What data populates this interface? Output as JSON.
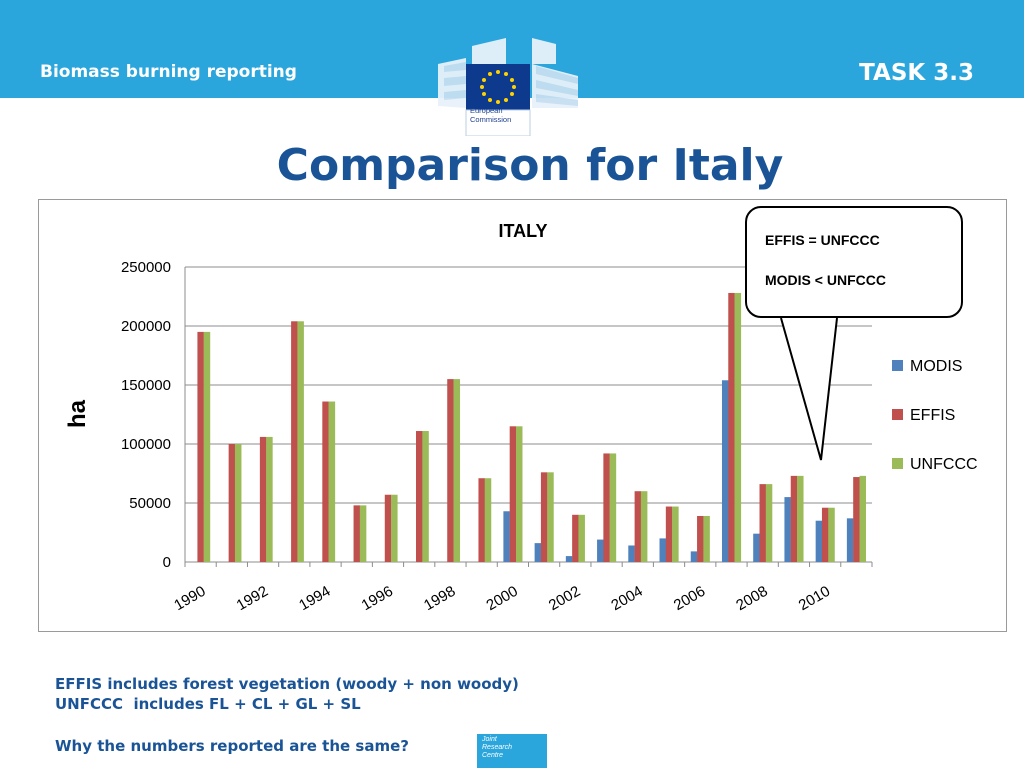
{
  "header": {
    "left_title": "Biomass burning reporting",
    "right_title": "TASK 3.3",
    "logo_text_1": "European",
    "logo_text_2": "Commission"
  },
  "slide_title": "Comparison for Italy",
  "callout": {
    "line1": "EFFIS = UNFCCC",
    "line2": "MODIS < UNFCCC"
  },
  "notes": {
    "line1": "EFFIS includes forest vegetation (woody + non woody)",
    "line2": "UNFCCC  includes FL + CL + GL + SL",
    "line3": "Why the numbers reported are the same?"
  },
  "jrc_logo": {
    "line1": "Joint",
    "line2": "Research",
    "line3": "Centre"
  },
  "colors": {
    "header_bg": "#2aa6dd",
    "title": "#1a5496",
    "modis": "#4f81bd",
    "effis": "#c0504d",
    "unfccc": "#9bbb59"
  },
  "chart_data": {
    "type": "bar",
    "title": "ITALY",
    "ylabel": "ha",
    "xlabel": "",
    "ylim": [
      0,
      250000
    ],
    "yticks": [
      0,
      50000,
      100000,
      150000,
      200000,
      250000
    ],
    "categories": [
      "1990",
      "1991",
      "1992",
      "1993",
      "1994",
      "1995",
      "1996",
      "1997",
      "1998",
      "1999",
      "2000",
      "2001",
      "2002",
      "2003",
      "2004",
      "2005",
      "2006",
      "2007",
      "2008",
      "2009",
      "2010",
      "2011"
    ],
    "xtick_labels": [
      "1990",
      "1992",
      "1994",
      "1996",
      "1998",
      "2000",
      "2002",
      "2004",
      "2006",
      "2008",
      "2010"
    ],
    "legend_position": "right",
    "grid": true,
    "series": [
      {
        "name": "MODIS",
        "color": "#4f81bd",
        "values": [
          null,
          null,
          null,
          null,
          null,
          null,
          null,
          null,
          null,
          null,
          43000,
          16000,
          5000,
          19000,
          14000,
          20000,
          9000,
          154000,
          24000,
          55000,
          35000,
          37000
        ]
      },
      {
        "name": "EFFIS",
        "color": "#c0504d",
        "values": [
          195000,
          100000,
          106000,
          204000,
          136000,
          48000,
          57000,
          111000,
          155000,
          71000,
          115000,
          76000,
          40000,
          92000,
          60000,
          47000,
          39000,
          228000,
          66000,
          73000,
          46000,
          72000
        ]
      },
      {
        "name": "UNFCCC",
        "color": "#9bbb59",
        "values": [
          195000,
          100000,
          106000,
          204000,
          136000,
          48000,
          57000,
          111000,
          155000,
          71000,
          115000,
          76000,
          40000,
          92000,
          60000,
          47000,
          39000,
          228000,
          66000,
          73000,
          46000,
          73000
        ]
      }
    ]
  }
}
